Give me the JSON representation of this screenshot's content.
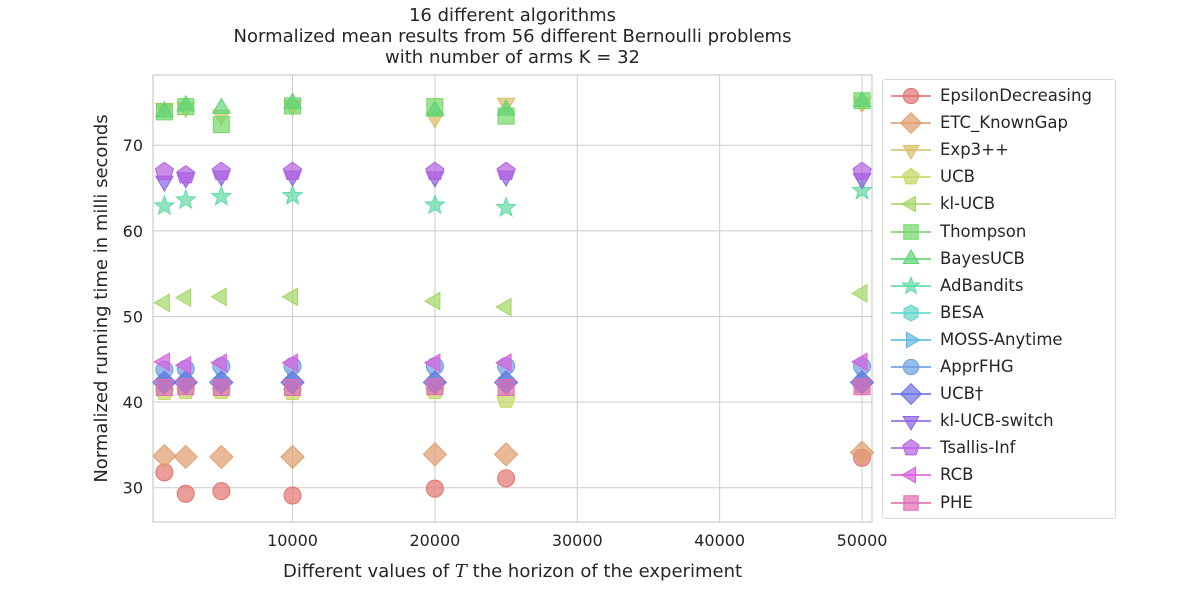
{
  "chart_data": {
    "type": "scatter",
    "title_lines": [
      "16 different algorithms",
      "Normalized mean results from 56 different Bernoulli problems",
      "with number of arms K = 32"
    ],
    "xlabel": "Different values of T the horizon of the experiment",
    "ylabel": "Normalized running time in milli seconds",
    "xlim": [
      200,
      50700
    ],
    "ylim": [
      26,
      78.2
    ],
    "xticks": [
      10000,
      20000,
      30000,
      40000,
      50000
    ],
    "yticks": [
      30,
      40,
      50,
      60,
      70
    ],
    "grid": true,
    "legend_position": "outside-right",
    "x": [
      1000,
      2500,
      5000,
      10000,
      20000,
      25000,
      50000
    ],
    "series": [
      {
        "name": "EpsilonDecreasing",
        "marker": "circle",
        "color": "#e2736d",
        "values": [
          31.8,
          29.3,
          29.6,
          29.1,
          29.9,
          31.1,
          33.5
        ]
      },
      {
        "name": "ETC_KnownGap",
        "marker": "diamond",
        "color": "#e09d6c",
        "values": [
          33.7,
          33.6,
          33.6,
          33.6,
          33.9,
          33.9,
          34.1
        ]
      },
      {
        "name": "Exp3++",
        "marker": "triangle-down",
        "color": "#d9bf66",
        "values": [
          74.3,
          74.4,
          73.5,
          74.6,
          73.2,
          74.9,
          75.0
        ]
      },
      {
        "name": "UCB",
        "marker": "pentagon",
        "color": "#c5d75e",
        "values": [
          41.2,
          41.3,
          41.3,
          41.2,
          41.3,
          40.3,
          42.0
        ]
      },
      {
        "name": "kl-UCB",
        "marker": "triangle-left",
        "color": "#a3d765",
        "values": [
          51.6,
          52.2,
          52.3,
          52.3,
          51.8,
          51.1,
          52.7
        ]
      },
      {
        "name": "Thompson",
        "marker": "square",
        "color": "#72d766",
        "values": [
          73.9,
          74.5,
          72.4,
          74.6,
          74.5,
          73.4,
          75.2
        ]
      },
      {
        "name": "BayesUCB",
        "marker": "triangle-up",
        "color": "#5fd476",
        "values": [
          73.9,
          74.6,
          74.3,
          74.9,
          74.0,
          74.1,
          75.1
        ]
      },
      {
        "name": "AdBandits",
        "marker": "star",
        "color": "#5fdba4",
        "values": [
          62.9,
          63.6,
          64.0,
          64.1,
          63.0,
          62.7,
          64.7
        ]
      },
      {
        "name": "BESA",
        "marker": "hexagon",
        "color": "#5fd6cb",
        "values": [
          42.2,
          42.3,
          42.3,
          42.3,
          42.3,
          42.3,
          42.3
        ]
      },
      {
        "name": "MOSS-Anytime",
        "marker": "triangle-right",
        "color": "#5cb9df",
        "values": [
          42.2,
          42.3,
          42.3,
          42.3,
          42.3,
          42.3,
          42.3
        ]
      },
      {
        "name": "ApprFHG",
        "marker": "circle",
        "color": "#6a9fe0",
        "values": [
          43.8,
          43.9,
          44.2,
          44.2,
          44.2,
          44.2,
          44.2
        ]
      },
      {
        "name": "UCB†",
        "marker": "diamond",
        "color": "#6a73e2",
        "values": [
          42.3,
          42.3,
          42.3,
          42.3,
          42.3,
          42.3,
          42.3
        ]
      },
      {
        "name": "kl-UCB-switch",
        "marker": "triangle-down",
        "color": "#8c62e2",
        "values": [
          65.8,
          66.2,
          66.4,
          66.4,
          66.3,
          66.4,
          66.1
        ]
      },
      {
        "name": "Tsallis-Inf",
        "marker": "pentagon",
        "color": "#b35fe0",
        "values": [
          66.9,
          66.5,
          66.9,
          66.9,
          66.9,
          66.9,
          66.9
        ]
      },
      {
        "name": "RCB",
        "marker": "triangle-left",
        "color": "#d95fdc",
        "values": [
          44.7,
          44.3,
          44.6,
          44.6,
          44.6,
          44.6,
          44.7
        ]
      },
      {
        "name": "PHE",
        "marker": "square",
        "color": "#e06cb4",
        "values": [
          41.7,
          41.8,
          41.7,
          41.7,
          41.8,
          41.7,
          41.8
        ]
      }
    ]
  }
}
